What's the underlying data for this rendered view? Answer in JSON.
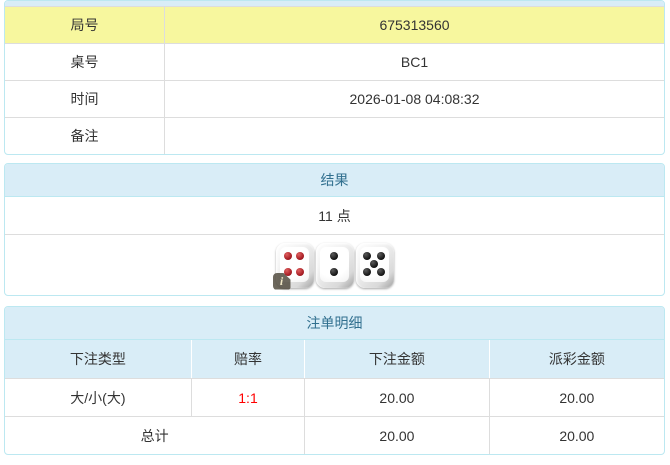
{
  "info_table": {
    "rows": [
      {
        "label": "局号",
        "value": "675313560"
      },
      {
        "label": "桌号",
        "value": "BC1"
      },
      {
        "label": "时间",
        "value": "2026-01-08 04:08:32"
      },
      {
        "label": "备注",
        "value": ""
      }
    ]
  },
  "result_panel": {
    "title": "结果",
    "points_text": "11 点",
    "dice": [
      {
        "value": 4,
        "pip_color": "red"
      },
      {
        "value": 2,
        "pip_color": "black"
      },
      {
        "value": 5,
        "pip_color": "black"
      }
    ],
    "info_badge_glyph": "i"
  },
  "bets_panel": {
    "title": "注单明细",
    "columns": [
      "下注类型",
      "赔率",
      "下注金额",
      "派彩金额"
    ],
    "rows": [
      {
        "bet_type": "大/小(大)",
        "odds": "1:1",
        "bet_amount": "20.00",
        "payout": "20.00"
      }
    ],
    "total_row": {
      "label": "总计",
      "bet_amount": "20.00",
      "payout": "20.00"
    }
  },
  "colors": {
    "panel_border": "#bce8f1",
    "header_bg": "#d9edf7",
    "header_text": "#31708f",
    "highlight_row_bg": "#f7f79e",
    "row_divider": "#dddddd",
    "body_text": "#333333",
    "odds_red": "#ff0000"
  }
}
